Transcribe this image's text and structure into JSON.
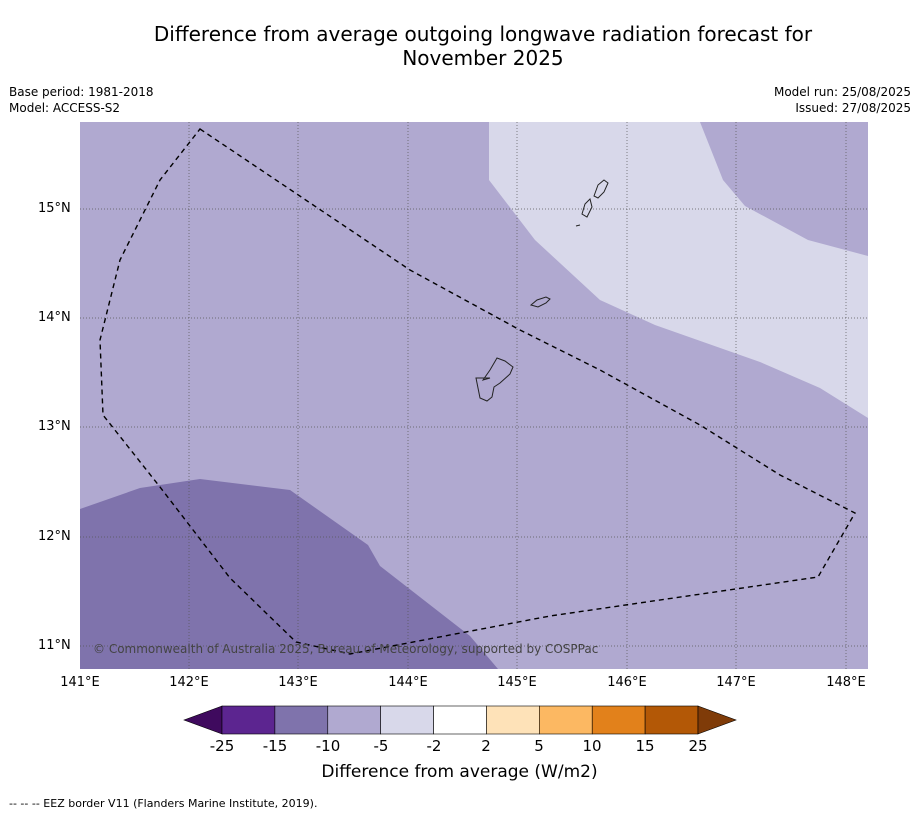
{
  "title_line1": "Difference from average outgoing longwave radiation forecast for",
  "title_line2": "November 2025",
  "meta_left": {
    "base_period": "Base period: 1981-2018",
    "model": "Model: ACCESS-S2"
  },
  "meta_right": {
    "model_run": "Model run: 25/08/2025",
    "issued": "Issued: 27/08/2025"
  },
  "latitude_labels": [
    "15°N",
    "14°N",
    "13°N",
    "12°N",
    "11°N"
  ],
  "longitude_labels": [
    "141°E",
    "142°E",
    "143°E",
    "144°E",
    "145°E",
    "146°E",
    "147°E",
    "148°E"
  ],
  "copyright": "© Commonwealth of Australia 2025, Bureau of Meteorology, supported by COSPPac",
  "colorbar": {
    "labels": [
      "-25",
      "-15",
      "-10",
      "-5",
      "-2",
      "2",
      "5",
      "10",
      "15",
      "25"
    ],
    "colors": [
      "#3f0a5e",
      "#5c2590",
      "#7f73ac",
      "#b0a9d0",
      "#d8d8ea",
      "#ffffff",
      "#fee2b8",
      "#fcb862",
      "#e2811b",
      "#b35806",
      "#7f3b08"
    ],
    "title": "Difference from average (W/m2)"
  },
  "footer": "--  --  -- EEZ border V11 (Flanders Marine Institute, 2019).",
  "map_colors": {
    "light": "#d8d8ea",
    "mid": "#b0a9d0",
    "dark": "#7f73ac"
  }
}
